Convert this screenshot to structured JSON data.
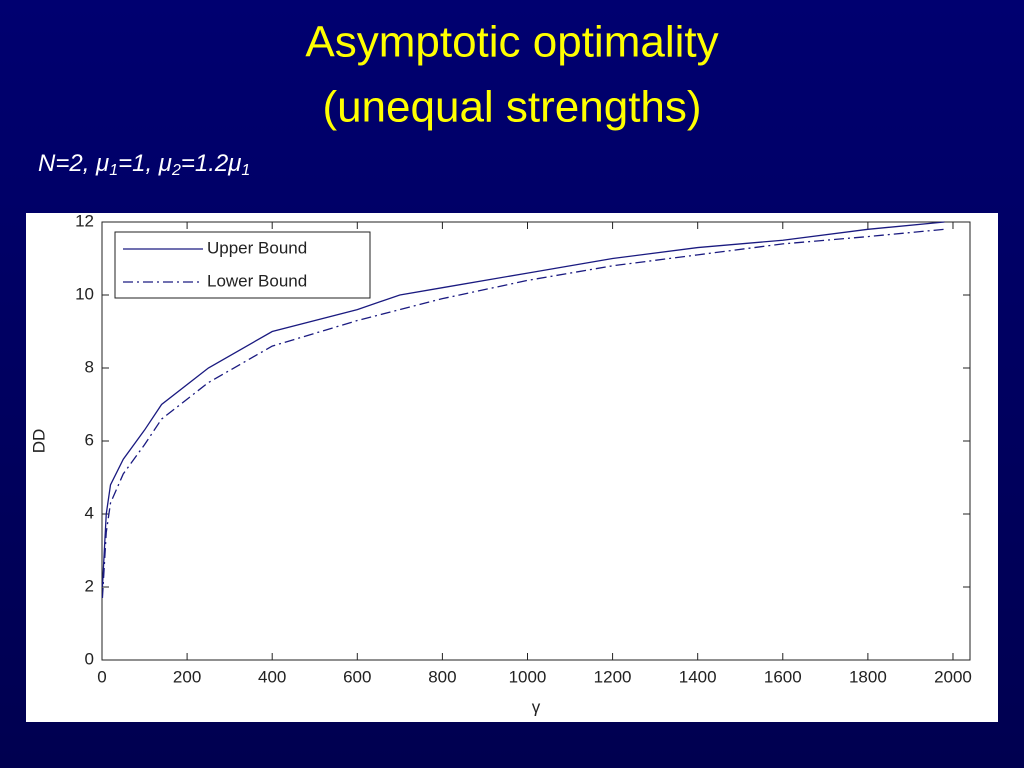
{
  "chart_data": {
    "type": "line",
    "title": [
      "Asymptotic optimality",
      "(unequal strengths)"
    ],
    "subtitle": [
      {
        "text": "N=2, μ"
      },
      {
        "sub": "1"
      },
      {
        "text": "=1, μ"
      },
      {
        "sub": "2"
      },
      {
        "text": "=1.2μ"
      },
      {
        "sub": "1"
      }
    ],
    "xlabel": "γ",
    "ylabel": "DD",
    "x": [
      1,
      10,
      20,
      50,
      100,
      140,
      250,
      400,
      600,
      700,
      800,
      1000,
      1200,
      1400,
      1600,
      1800,
      1980
    ],
    "series": [
      {
        "name": "Upper Bound",
        "color": "#1a1a80",
        "linestyle": "solid",
        "values": [
          2,
          4,
          4.8,
          5.5,
          6.3,
          7,
          8,
          9,
          9.6,
          10,
          10.2,
          10.6,
          11,
          11.3,
          11.5,
          11.8,
          12
        ]
      },
      {
        "name": "Lower Bound",
        "color": "#1a1a80",
        "linestyle": "dashdot",
        "values": [
          1.7,
          3.5,
          4.3,
          5.1,
          5.9,
          6.6,
          7.6,
          8.6,
          9.3,
          9.6,
          9.9,
          10.4,
          10.8,
          11.1,
          11.4,
          11.6,
          11.8
        ]
      }
    ],
    "xlim": [
      0,
      2040
    ],
    "ylim": [
      0,
      12
    ],
    "xticks": [
      0,
      200,
      400,
      600,
      800,
      1000,
      1200,
      1400,
      1600,
      1800,
      2000
    ],
    "yticks": [
      0,
      2,
      4,
      6,
      8,
      10,
      12
    ],
    "legend": "upper-left",
    "grid": false
  }
}
